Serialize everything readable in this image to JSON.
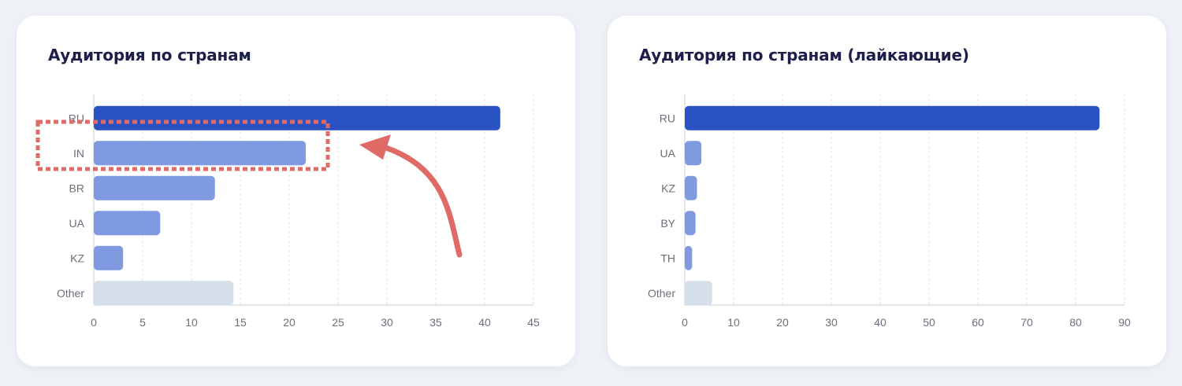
{
  "colors": {
    "primary_bar": "#2a52c3",
    "secondary_bar": "#7f9ae0",
    "other_bar": "#d5dfe9",
    "annotation": "#e06a66"
  },
  "chart_data": [
    {
      "type": "bar",
      "orientation": "horizontal",
      "title": "Аудитория по странам",
      "categories": [
        "RU",
        "IN",
        "BR",
        "UA",
        "KZ",
        "Other"
      ],
      "values": [
        41.6,
        21.7,
        12.4,
        6.8,
        3.0,
        14.3
      ],
      "xlim": [
        0,
        45
      ],
      "xticks": [
        "0",
        "5",
        "10",
        "15",
        "20",
        "25",
        "30",
        "35",
        "40",
        "45"
      ],
      "grid": "vertical dashed",
      "highlight": "IN"
    },
    {
      "type": "bar",
      "orientation": "horizontal",
      "title": "Аудитория по странам (лайкающие)",
      "categories": [
        "RU",
        "UA",
        "KZ",
        "BY",
        "TH",
        "Other"
      ],
      "values": [
        84.9,
        3.4,
        2.5,
        2.2,
        1.5,
        5.6
      ],
      "xlim": [
        0,
        90
      ],
      "xticks": [
        "0",
        "10",
        "20",
        "30",
        "40",
        "50",
        "60",
        "70",
        "80",
        "90"
      ],
      "grid": "vertical dashed"
    }
  ]
}
